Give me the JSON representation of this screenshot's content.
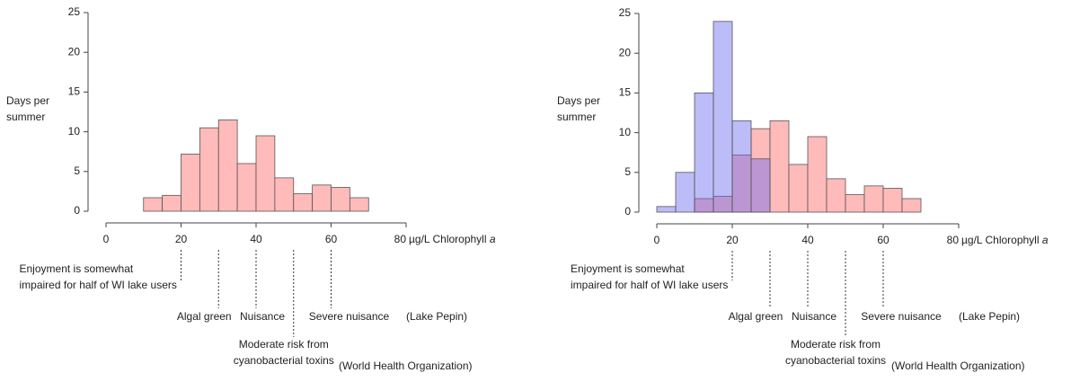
{
  "chart_data": [
    {
      "type": "histogram",
      "ylabel": [
        "Days per",
        "summer"
      ],
      "xlabel": "µg/L Chlorophyll",
      "xlabel_italic": "a",
      "xlim": [
        0,
        80
      ],
      "xticks": [
        0,
        20,
        40,
        60,
        80
      ],
      "ylim": [
        0,
        25
      ],
      "yticks": [
        0,
        5,
        10,
        15,
        20,
        25
      ],
      "series": [
        {
          "color": "#ffbaba",
          "opacity": 1,
          "bins": [
            10,
            15,
            20,
            25,
            30,
            35,
            40,
            45,
            50,
            55,
            60,
            65,
            70
          ],
          "values": [
            1.7,
            2,
            7.2,
            10.5,
            11.5,
            6,
            9.5,
            4.2,
            2.2,
            3.3,
            3,
            1.7
          ]
        }
      ],
      "annotations": [
        {
          "x": 20,
          "lines": [
            "Enjoyment is somewhat",
            "impaired for half of WI lake users"
          ]
        },
        {
          "x": 30,
          "lines": [
            "Algal green"
          ]
        },
        {
          "x": 40,
          "lines": [
            "Nuisance"
          ]
        },
        {
          "x": 50,
          "lines": [
            "Moderate risk from",
            "cyanobacterial toxins"
          ]
        },
        {
          "x": 60,
          "lines": [
            "Severe nuisance"
          ]
        }
      ],
      "sources": [
        "(Lake Pepin)",
        "(World Health Organization)"
      ]
    },
    {
      "type": "histogram",
      "ylabel": [
        "Days per",
        "summer"
      ],
      "xlabel": "µg/L Chlorophyll",
      "xlabel_italic": "a",
      "xlim": [
        0,
        80
      ],
      "xticks": [
        0,
        20,
        40,
        60,
        80
      ],
      "ylim": [
        0,
        25
      ],
      "yticks": [
        0,
        5,
        10,
        15,
        20,
        25
      ],
      "series": [
        {
          "color": "#ffbaba",
          "opacity": 1,
          "bins": [
            10,
            15,
            20,
            25,
            30,
            35,
            40,
            45,
            50,
            55,
            60,
            65,
            70
          ],
          "values": [
            1.7,
            2,
            7.2,
            10.5,
            11.5,
            6,
            9.5,
            4.2,
            2.2,
            3.3,
            3,
            1.7
          ]
        },
        {
          "color": "#6b6bf0",
          "opacity": 0.45,
          "bins": [
            0,
            5,
            10,
            15,
            20,
            25,
            30
          ],
          "values": [
            0.7,
            5,
            15,
            24,
            11.5,
            6.7
          ]
        }
      ],
      "annotations": [
        {
          "x": 20,
          "lines": [
            "Enjoyment is somewhat",
            "impaired for half of WI lake users"
          ]
        },
        {
          "x": 30,
          "lines": [
            "Algal green"
          ]
        },
        {
          "x": 40,
          "lines": [
            "Nuisance"
          ]
        },
        {
          "x": 50,
          "lines": [
            "Moderate risk from",
            "cyanobacterial toxins"
          ]
        },
        {
          "x": 60,
          "lines": [
            "Severe nuisance"
          ]
        }
      ],
      "sources": [
        "(Lake Pepin)",
        "(World Health Organization)"
      ]
    }
  ]
}
